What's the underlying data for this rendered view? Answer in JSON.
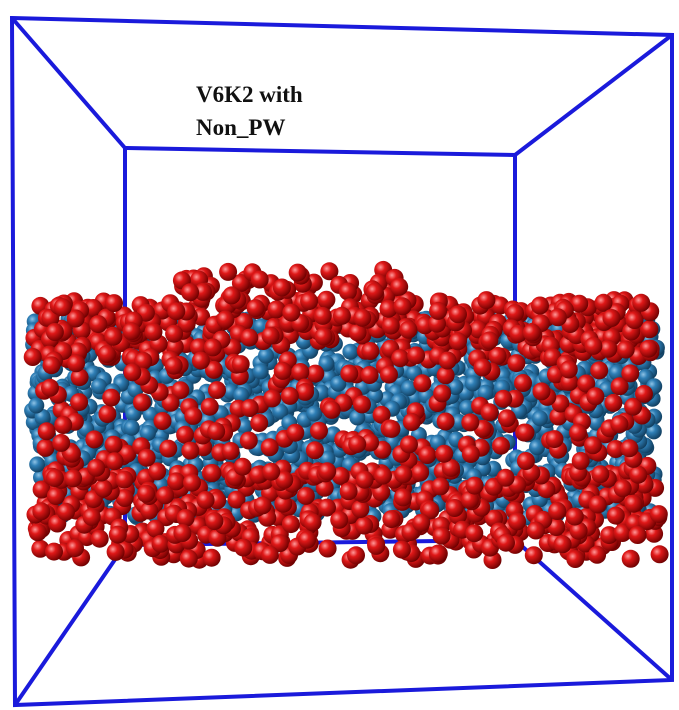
{
  "label": {
    "line1": "V6K2 with",
    "line2": "Non_PW"
  }
}
